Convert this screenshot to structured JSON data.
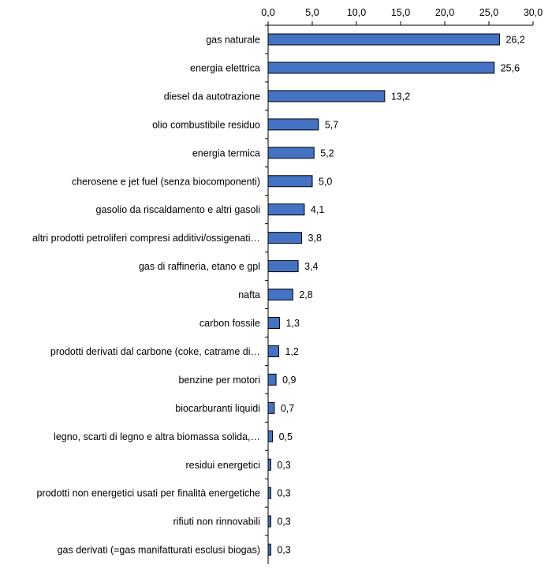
{
  "chart_data": {
    "type": "bar",
    "orientation": "horizontal",
    "title": "",
    "xlabel": "",
    "ylabel": "",
    "xlim": [
      0,
      30
    ],
    "x_ticks": [
      "0,0",
      "5,0",
      "10,0",
      "15,0",
      "20,0",
      "25,0",
      "30,0"
    ],
    "x_tick_values": [
      0,
      5,
      10,
      15,
      20,
      25,
      30
    ],
    "axis_position": "top",
    "grid": false,
    "bar_color": "#4472C4",
    "bar_edge_color": "#000000",
    "categories": [
      "gas naturale",
      "energia elettrica",
      "diesel da autotrazione",
      "olio combustibile residuo",
      "energia termica",
      "cherosene e jet fuel (senza biocomponenti)",
      "gasolio da riscaldamento e altri gasoli",
      "altri prodotti petroliferi compresi additivi/ossigenati…",
      "gas di raffineria, etano e gpl",
      "nafta",
      "carbon fossile",
      "prodotti derivati dal carbone (coke, catrame di…",
      "benzine per motori",
      "biocarburanti liquidi",
      "legno, scarti di legno e altra biomassa solida,…",
      "residui energetici",
      "prodotti non energetici usati per finalità energetiche",
      "rifiuti non rinnovabili",
      "gas derivati (=gas manifatturati esclusi biogas)"
    ],
    "values": [
      26.2,
      25.6,
      13.2,
      5.7,
      5.2,
      5.0,
      4.1,
      3.8,
      3.4,
      2.8,
      1.3,
      1.2,
      0.9,
      0.7,
      0.5,
      0.3,
      0.3,
      0.3,
      0.3
    ],
    "value_labels": [
      "26,2",
      "25,6",
      "13,2",
      "5,7",
      "5,2",
      "5,0",
      "4,1",
      "3,8",
      "3,4",
      "2,8",
      "1,3",
      "1,2",
      "0,9",
      "0,7",
      "0,5",
      "0,3",
      "0,3",
      "0,3",
      "0,3"
    ]
  }
}
